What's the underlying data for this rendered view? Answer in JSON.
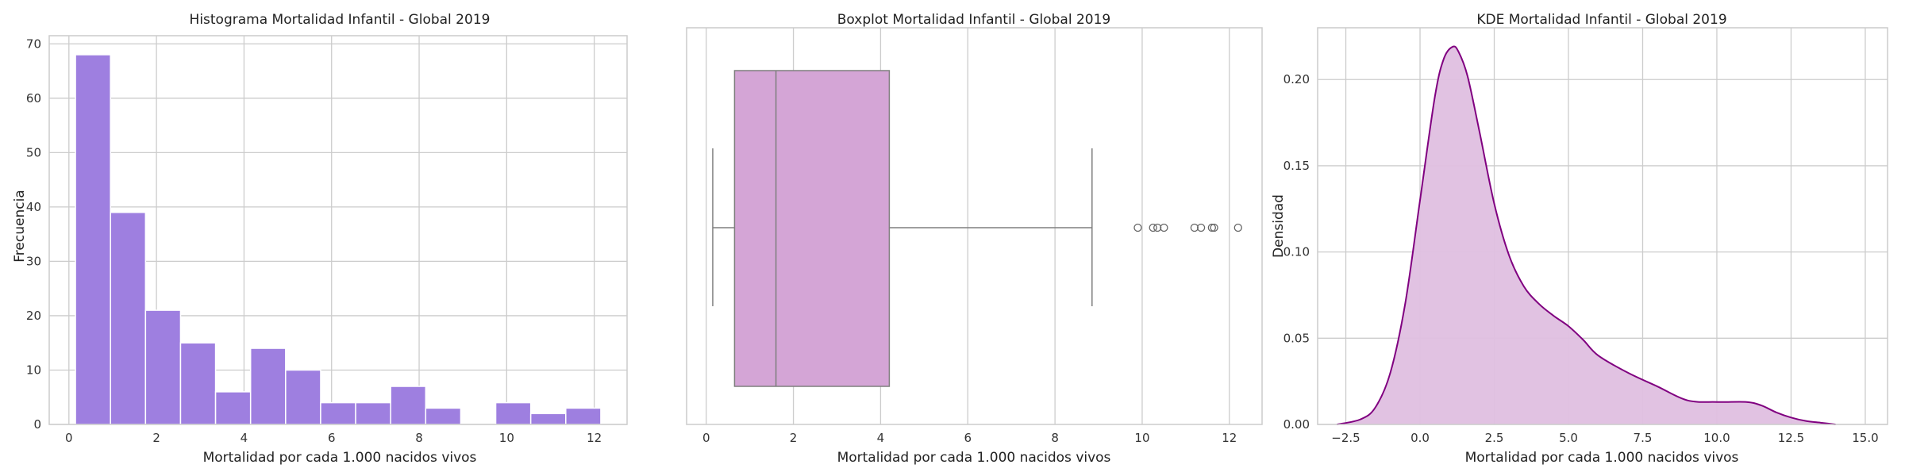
{
  "chart_data": [
    {
      "type": "bar",
      "subtype": "histogram",
      "title": "Histograma Mortalidad Infantil - Global 2019",
      "xlabel": "Mortalidad por cada 1.000 nacidos vivos",
      "ylabel": "Frecuencia",
      "bin_edges": [
        0.15,
        0.95,
        1.75,
        2.55,
        3.35,
        4.15,
        4.95,
        5.75,
        6.55,
        7.35,
        8.15,
        8.95,
        9.75,
        10.55,
        11.35,
        12.15
      ],
      "values": [
        68,
        39,
        21,
        15,
        6,
        14,
        10,
        4,
        4,
        7,
        3,
        0,
        4,
        2,
        3
      ],
      "xticks": [
        0,
        2,
        4,
        6,
        8,
        10,
        12
      ],
      "yticks": [
        0,
        10,
        20,
        30,
        40,
        50,
        60,
        70
      ],
      "xlim": [
        -0.45,
        12.75
      ],
      "ylim": [
        0,
        71.5
      ],
      "color": "#9e7fe0",
      "grid": true
    },
    {
      "type": "boxplot",
      "title": "Boxplot Mortalidad Infantil - Global 2019",
      "xlabel": "Mortalidad por cada 1.000 nacidos vivos",
      "ylabel": "",
      "whisker_low": 0.15,
      "q1": 0.65,
      "median": 1.6,
      "q3": 4.2,
      "whisker_high": 8.85,
      "outliers": [
        9.9,
        10.25,
        10.35,
        10.5,
        11.2,
        11.35,
        11.6,
        11.65,
        12.2
      ],
      "xticks": [
        0,
        2,
        4,
        6,
        8,
        10,
        12
      ],
      "xlim": [
        -0.45,
        12.75
      ],
      "color": "#d4a5d6",
      "grid": true
    },
    {
      "type": "area",
      "subtype": "kde",
      "title": "KDE Mortalidad Infantil - Global 2019",
      "xlabel": "Mortalidad por cada 1.000 nacidos vivos",
      "ylabel": "Densidad",
      "x": [
        -2.8,
        -2.0,
        -1.5,
        -1.0,
        -0.5,
        0.0,
        0.5,
        0.8,
        1.1,
        1.3,
        1.6,
        2.0,
        2.5,
        3.0,
        3.5,
        4.0,
        4.5,
        5.0,
        5.5,
        6.0,
        7.0,
        8.0,
        9.0,
        10.0,
        11.0,
        11.5,
        12.0,
        12.5,
        13.0,
        13.5,
        14.0
      ],
      "y": [
        0.0,
        0.003,
        0.01,
        0.03,
        0.07,
        0.13,
        0.19,
        0.212,
        0.219,
        0.216,
        0.202,
        0.17,
        0.128,
        0.098,
        0.08,
        0.07,
        0.063,
        0.057,
        0.049,
        0.04,
        0.03,
        0.022,
        0.014,
        0.013,
        0.013,
        0.011,
        0.007,
        0.004,
        0.002,
        0.001,
        0.0
      ],
      "xticks": [
        -2.5,
        0.0,
        2.5,
        5.0,
        7.5,
        10.0,
        12.5,
        15.0
      ],
      "xtick_labels": [
        "−2.5",
        "0.0",
        "2.5",
        "5.0",
        "7.5",
        "10.0",
        "12.5",
        "15.0"
      ],
      "yticks": [
        0.0,
        0.05,
        0.1,
        0.15,
        0.2
      ],
      "ytick_labels": [
        "0.00",
        "0.05",
        "0.10",
        "0.15",
        "0.20"
      ],
      "xlim": [
        -3.45,
        15.75
      ],
      "ylim": [
        0,
        0.23
      ],
      "color": "#800080",
      "fill_color": "#dfbfe0",
      "grid": true
    }
  ]
}
